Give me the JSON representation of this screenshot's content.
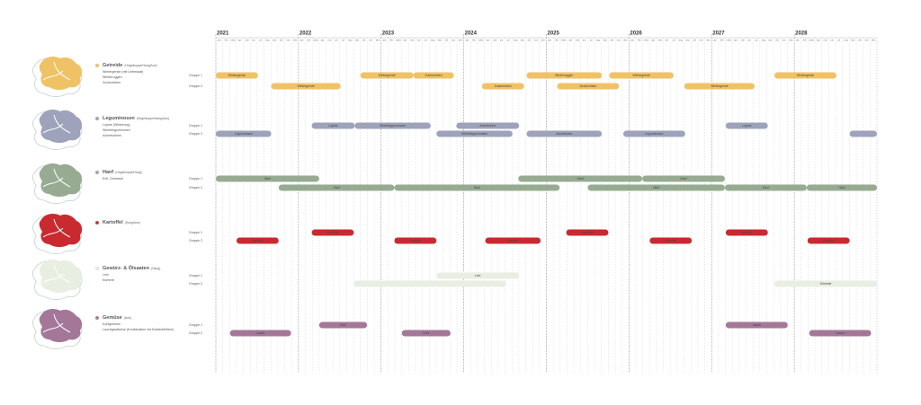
{
  "chart_data": {
    "type": "gantt",
    "xlim": [
      2021,
      2029
    ],
    "xticks": [
      2021,
      2022,
      2023,
      2024,
      2025,
      2026,
      2027,
      2028
    ],
    "months": [
      "jan",
      "feb",
      "märz",
      "apr",
      "mai",
      "jun",
      "jul",
      "aug",
      "sep",
      "okt",
      "nov",
      "dez"
    ],
    "groups": [
      {
        "name": "Getreide",
        "detail": "(Hügelkuppe/Hang/Aue)",
        "color": "#f0c266",
        "items": [
          "Wintergerste (mit Untersaat)",
          "Winterroggen",
          "Zuckerrüben"
        ],
        "rows": [
          {
            "label": "Gruppe 1",
            "bars": [
              {
                "start": 2021.0,
                "end": 2021.51,
                "label": "Wintergerste"
              },
              {
                "start": 2022.75,
                "end": 2023.39,
                "label": "Wintergerste"
              },
              {
                "start": 2023.39,
                "end": 2023.88,
                "label": "Zuckerrüben"
              },
              {
                "start": 2024.76,
                "end": 2025.67,
                "label": "Winterroggen"
              },
              {
                "start": 2025.76,
                "end": 2026.54,
                "label": "Wintergerste"
              },
              {
                "start": 2027.76,
                "end": 2028.51,
                "label": "Wintergerste"
              }
            ]
          },
          {
            "label": "Gruppe 2",
            "bars": [
              {
                "start": 2021.67,
                "end": 2022.51,
                "label": "Wintergerste"
              },
              {
                "start": 2024.22,
                "end": 2024.73,
                "label": "Zuckerrüben"
              },
              {
                "start": 2025.13,
                "end": 2025.88,
                "label": "Zuckerrüben"
              },
              {
                "start": 2026.67,
                "end": 2027.52,
                "label": "Wintergerste"
              }
            ]
          }
        ]
      },
      {
        "name": "Leguminosen",
        "detail": "(Hügelkuppe/Hang/Aue)",
        "color": "#9ea3bb",
        "items": [
          "Lupine (Winterung)",
          "Winterleguminosen",
          "Ackerbohnen"
        ],
        "rows": [
          {
            "label": "Gruppe 1",
            "bars": [
              {
                "start": 2022.16,
                "end": 2022.68,
                "label": "Lupine"
              },
              {
                "start": 2022.68,
                "end": 2023.6,
                "label": "Winterleguminosen"
              },
              {
                "start": 2023.91,
                "end": 2024.67,
                "label": "Ackerbohne"
              },
              {
                "start": 2027.17,
                "end": 2027.68,
                "label": "Lupine"
              }
            ]
          },
          {
            "label": "Gruppe 2",
            "bars": [
              {
                "start": 2021.0,
                "end": 2021.67,
                "label": "Leguminosen"
              },
              {
                "start": 2023.67,
                "end": 2024.59,
                "label": "Winterleguminosen"
              },
              {
                "start": 2024.76,
                "end": 2025.67,
                "label": "Ackerbohne"
              },
              {
                "start": 2025.93,
                "end": 2026.68,
                "label": "Leguminosen"
              },
              {
                "start": 2028.67,
                "end": 2029.0
              }
            ]
          }
        ]
      },
      {
        "name": "Hanf",
        "detail": "(Hügelkuppe/Hang)",
        "color": "#97ab92",
        "items": [
          "Evtl. Grünland"
        ],
        "rows": [
          {
            "label": "Gruppe 1",
            "bars": [
              {
                "start": 2021.0,
                "end": 2022.25,
                "label": "Hanf"
              },
              {
                "start": 2024.66,
                "end": 2026.16,
                "label": "Hanf"
              },
              {
                "start": 2026.16,
                "end": 2027.16,
                "label": "Hanf"
              }
            ]
          },
          {
            "label": "Gruppe 2",
            "bars": [
              {
                "start": 2021.76,
                "end": 2023.16,
                "label": "Hanf"
              },
              {
                "start": 2023.16,
                "end": 2025.16,
                "label": "Hanf"
              },
              {
                "start": 2025.5,
                "end": 2027.16,
                "label": "Hanf"
              },
              {
                "start": 2027.16,
                "end": 2028.15,
                "label": "Hanf"
              },
              {
                "start": 2028.15,
                "end": 2029.0,
                "label": "Hanf"
              }
            ]
          }
        ]
      },
      {
        "name": "Kartoffel",
        "detail": "(Hang/Aue)",
        "color": "#c92a30",
        "items": [],
        "rows": [
          {
            "label": "Gruppe 1",
            "bars": [
              {
                "start": 2022.16,
                "end": 2022.67,
                "label": "Kartoffel"
              },
              {
                "start": 2025.24,
                "end": 2025.75,
                "label": "Kartoffel"
              },
              {
                "start": 2027.17,
                "end": 2027.68,
                "label": "Kartoffel"
              }
            ]
          },
          {
            "label": "Gruppe 2",
            "bars": [
              {
                "start": 2021.25,
                "end": 2021.76,
                "label": "Kartoffel"
              },
              {
                "start": 2023.16,
                "end": 2023.67,
                "label": "Kartoffel"
              },
              {
                "start": 2024.26,
                "end": 2024.93,
                "label": "Kartoffel"
              },
              {
                "start": 2026.25,
                "end": 2026.76,
                "label": "Kartoffel"
              },
              {
                "start": 2028.16,
                "end": 2028.67,
                "label": "Kartoffel"
              }
            ]
          }
        ]
      },
      {
        "name": "Gewürz- & Ölsaaten",
        "detail": "(Hang)",
        "color": "#e9eee2",
        "items": [
          "Lein",
          "Kümmel"
        ],
        "rows": [
          {
            "label": "Gruppe 1",
            "bars": [
              {
                "start": 2023.67,
                "end": 2024.67,
                "label": "Lein"
              }
            ]
          },
          {
            "label": "Gruppe 2",
            "bars": [
              {
                "start": 2022.67,
                "end": 2024.51
              },
              {
                "start": 2027.76,
                "end": 2029.0,
                "label": "Kümmel"
              }
            ]
          }
        ]
      },
      {
        "name": "Gemüse",
        "detail": "(Aue)",
        "color": "#a47799",
        "items": [
          "Kohlgemüse",
          "Lauchgewächse (Kombination mit Doldenblütlern)"
        ],
        "rows": [
          {
            "label": "Gruppe 1",
            "bars": [
              {
                "start": 2022.25,
                "end": 2022.83,
                "label": "Kohl"
              },
              {
                "start": 2027.17,
                "end": 2027.92,
                "label": "Lauch"
              }
            ]
          },
          {
            "label": "Gruppe 2",
            "bars": [
              {
                "start": 2021.17,
                "end": 2021.91,
                "label": "Lauch"
              },
              {
                "start": 2023.25,
                "end": 2023.84,
                "label": "Kohl"
              },
              {
                "start": 2028.18,
                "end": 2028.93,
                "label": "Lauch"
              }
            ]
          }
        ]
      }
    ]
  }
}
